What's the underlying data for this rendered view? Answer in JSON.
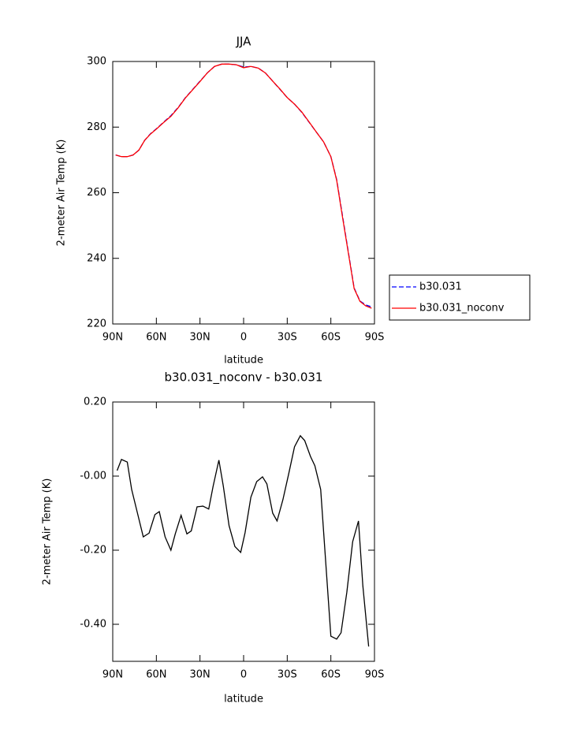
{
  "chart_data": [
    {
      "type": "line",
      "title": "JJA",
      "xlabel": "latitude",
      "ylabel": "2-meter Air Temp (K)",
      "x": [
        88,
        84,
        80,
        76,
        72,
        68,
        64,
        60,
        55,
        50,
        45,
        40,
        35,
        30,
        25,
        20,
        15,
        10,
        5,
        0,
        -5,
        -10,
        -15,
        -20,
        -25,
        -30,
        -35,
        -40,
        -45,
        -50,
        -55,
        -60,
        -64,
        -68,
        -72,
        -76,
        -80,
        -84,
        -88
      ],
      "series": [
        {
          "name": "b30.031",
          "color": "#0000ff",
          "linestyle": "dashed",
          "values": [
            271.5,
            271,
            271,
            271.5,
            273,
            276,
            278,
            279.5,
            281.5,
            283.5,
            286,
            289,
            291.5,
            294,
            296.5,
            298.5,
            299.2,
            299.2,
            299,
            298.3,
            298.5,
            298,
            296.5,
            294,
            291.5,
            289,
            287,
            284.5,
            281.5,
            278.5,
            275.5,
            271,
            264,
            253,
            242,
            231,
            227,
            225.8,
            225.2
          ]
        },
        {
          "name": "b30.031_noconv",
          "color": "#ff0000",
          "linestyle": "solid",
          "values": [
            271.5,
            271,
            271,
            271.5,
            273,
            276,
            277.9,
            279.4,
            281.4,
            283.3,
            285.9,
            288.9,
            291.4,
            293.9,
            296.5,
            298.5,
            299.2,
            299.2,
            299,
            298.1,
            298.5,
            298,
            296.5,
            294,
            291.6,
            289,
            287,
            284.6,
            281.6,
            278.5,
            275.5,
            271,
            263.8,
            252.6,
            241.7,
            230.8,
            226.9,
            225.5,
            224.8
          ]
        }
      ],
      "xlim": [
        90,
        -90
      ],
      "xticks": [
        {
          "value": 90,
          "label": "90N"
        },
        {
          "value": 60,
          "label": "60N"
        },
        {
          "value": 30,
          "label": "30N"
        },
        0,
        {
          "value": -30,
          "label": "30S"
        },
        {
          "value": -60,
          "label": "60S"
        },
        {
          "value": -90,
          "label": "90S"
        }
      ],
      "ylim": [
        220,
        300
      ],
      "yticks": [
        220,
        240,
        260,
        280,
        300
      ],
      "legend": "right"
    },
    {
      "type": "line",
      "title": "b30.031_noconv - b30.031",
      "xlabel": "latitude",
      "ylabel": "2-meter Air Temp (K)",
      "x": [
        87,
        84,
        80,
        77,
        73,
        69,
        65,
        61,
        58,
        54,
        50,
        47,
        43,
        39,
        36,
        32,
        28,
        24,
        21,
        17,
        14,
        10,
        6,
        2,
        -1,
        -5,
        -9,
        -13,
        -16,
        -20,
        -23,
        -27,
        -31,
        -35,
        -39,
        -42,
        -46,
        -49,
        -53,
        -56,
        -60,
        -64,
        -67,
        -71,
        -75,
        -79,
        -82,
        -86
      ],
      "series": [
        {
          "name": "b30.031_noconv - b30.031",
          "color": "#000000",
          "linestyle": "solid",
          "values": [
            0.015,
            0.045,
            0.038,
            -0.036,
            -0.1,
            -0.164,
            -0.154,
            -0.104,
            -0.096,
            -0.164,
            -0.2,
            -0.156,
            -0.106,
            -0.156,
            -0.148,
            -0.083,
            -0.081,
            -0.089,
            -0.028,
            0.043,
            -0.026,
            -0.134,
            -0.19,
            -0.206,
            -0.153,
            -0.057,
            -0.015,
            -0.002,
            -0.021,
            -0.1,
            -0.121,
            -0.064,
            0.006,
            0.079,
            0.109,
            0.096,
            0.053,
            0.028,
            -0.036,
            -0.206,
            -0.432,
            -0.44,
            -0.423,
            -0.313,
            -0.177,
            -0.121,
            -0.296,
            -0.46
          ]
        }
      ],
      "xlim": [
        90,
        -90
      ],
      "xticks": [
        {
          "value": 90,
          "label": "90N"
        },
        {
          "value": 60,
          "label": "60N"
        },
        {
          "value": 30,
          "label": "30N"
        },
        0,
        {
          "value": -30,
          "label": "30S"
        },
        {
          "value": -60,
          "label": "60S"
        },
        {
          "value": -90,
          "label": "90S"
        }
      ],
      "ylim": [
        -0.5,
        0.2
      ],
      "yticks": [
        {
          "value": -0.4,
          "label": "-0.40"
        },
        {
          "value": -0.2,
          "label": "-0.20"
        },
        {
          "value": 0,
          "label": "-0.00"
        },
        {
          "value": 0.2,
          "label": "0.20"
        }
      ]
    }
  ]
}
